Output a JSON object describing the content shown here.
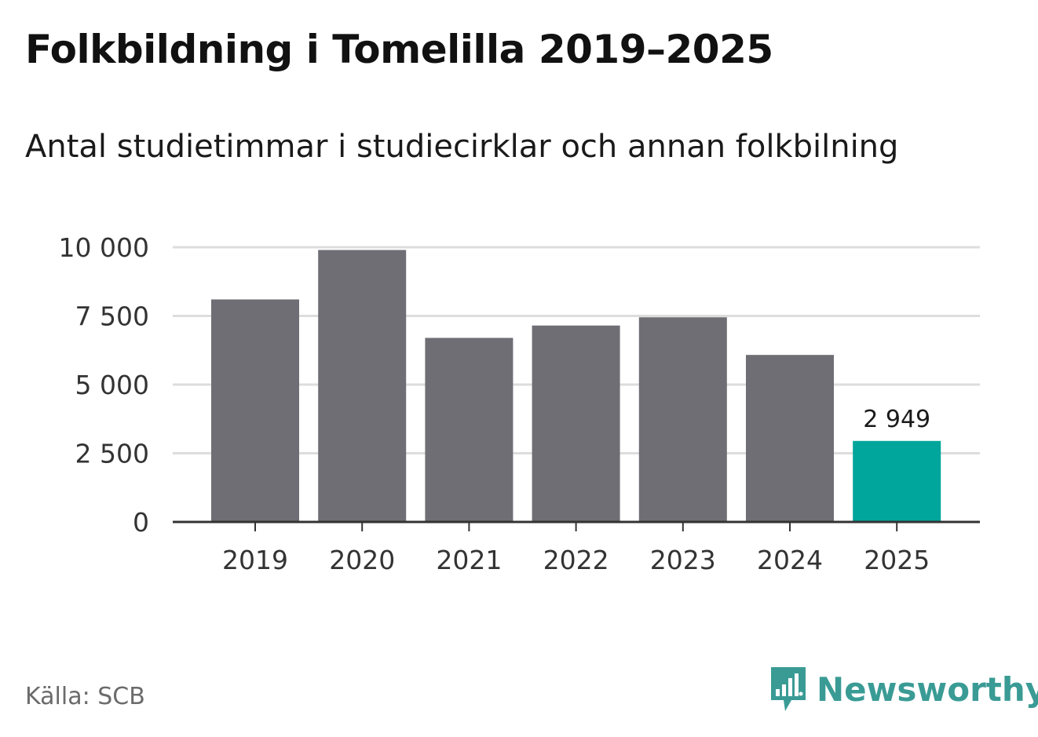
{
  "header": {
    "title": "Folkbildning i Tomelilla 2019–2025",
    "subtitle": "Antal studietimmar i studiecirklar och annan folkbilning"
  },
  "footer": {
    "source": "Källa: SCB",
    "brand": "Newsworthy",
    "brand_icon": "bar-chart-speech-bubble-icon"
  },
  "colors": {
    "bar": "#6e6e74",
    "highlight": "#00a59b",
    "grid": "#dddddd",
    "axis": "#333333",
    "brand": "#3a9b95"
  },
  "chart_data": {
    "type": "bar",
    "categories": [
      "2019",
      "2020",
      "2021",
      "2022",
      "2023",
      "2024",
      "2025"
    ],
    "values": [
      8100,
      9900,
      6700,
      7150,
      7450,
      6080,
      2949
    ],
    "highlight_index": 6,
    "data_labels": [
      {
        "index": 6,
        "text": "2 949"
      }
    ],
    "ylim": [
      0,
      10000
    ],
    "yticks": [
      0,
      2500,
      5000,
      7500,
      10000
    ],
    "ytick_labels": [
      "0",
      "2 500",
      "5 000",
      "7 500",
      "10 000"
    ],
    "grid": true,
    "legend": "none"
  }
}
